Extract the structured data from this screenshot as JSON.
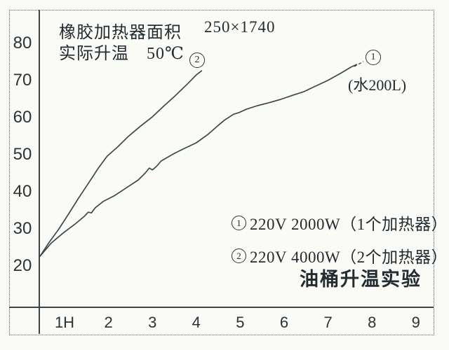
{
  "header": {
    "line1_label": "橡胶加热器面积",
    "line1_value": "250×1740",
    "line2": "实际升温　50℃"
  },
  "curve_labels": {
    "c1": {
      "num": "1",
      "note": "(水200L)"
    },
    "c2": {
      "num": "2"
    }
  },
  "legend": {
    "items": [
      {
        "num": "1",
        "label": "220V 2000W（1个加热器）"
      },
      {
        "num": "2",
        "label": "220V 4000W（2个加热器）"
      }
    ]
  },
  "title": "油桶升温实验",
  "chart_data": {
    "type": "line",
    "title": "油桶升温实验",
    "annotations": [
      "橡胶加热器面积 250×1740",
      "实际升温 50℃",
      "(水200L)"
    ],
    "x_unit": "hours",
    "x_ticks": [
      "1H",
      "2",
      "3",
      "4",
      "5",
      "6",
      "7",
      "8",
      "9"
    ],
    "y_ticks": [
      80,
      70,
      60,
      50,
      40,
      30,
      20
    ],
    "y_axis_label_range": [
      20,
      80
    ],
    "grid": false,
    "legend_position": "lower-right",
    "series": [
      {
        "name": "① 220V 2000W（1个加热器）",
        "note": "(水200L)",
        "points": [
          [
            0.44,
            22.6
          ],
          [
            0.7,
            26.2
          ],
          [
            0.97,
            28.9
          ],
          [
            1.24,
            31.3
          ],
          [
            1.45,
            33.4
          ],
          [
            1.54,
            34.5
          ],
          [
            1.61,
            34.3
          ],
          [
            1.7,
            35.7
          ],
          [
            1.88,
            37.4
          ],
          [
            2.13,
            38.9
          ],
          [
            2.41,
            41.1
          ],
          [
            2.68,
            43.2
          ],
          [
            2.84,
            45.1
          ],
          [
            2.93,
            46.4
          ],
          [
            3.0,
            45.9
          ],
          [
            3.09,
            46.8
          ],
          [
            3.2,
            48.3
          ],
          [
            3.48,
            50.2
          ],
          [
            3.73,
            51.7
          ],
          [
            4.0,
            53.2
          ],
          [
            4.27,
            55.5
          ],
          [
            4.48,
            57.7
          ],
          [
            4.64,
            59.3
          ],
          [
            4.85,
            60.9
          ],
          [
            4.96,
            61.3
          ],
          [
            5.15,
            62.3
          ],
          [
            5.39,
            63.2
          ],
          [
            5.65,
            64.0
          ],
          [
            5.92,
            64.9
          ],
          [
            6.19,
            66.0
          ],
          [
            6.45,
            67.0
          ],
          [
            6.72,
            68.5
          ],
          [
            6.99,
            70.0
          ],
          [
            7.31,
            72.1
          ],
          [
            7.52,
            73.6
          ],
          [
            7.65,
            74.3
          ]
        ]
      },
      {
        "name": "② 220V 4000W（2个加热器）",
        "points": [
          [
            0.44,
            22.6
          ],
          [
            0.65,
            26.4
          ],
          [
            0.86,
            29.8
          ],
          [
            1.08,
            33.8
          ],
          [
            1.32,
            38.3
          ],
          [
            1.56,
            42.6
          ],
          [
            1.77,
            46.4
          ],
          [
            1.97,
            49.6
          ],
          [
            2.21,
            52.1
          ],
          [
            2.45,
            54.9
          ],
          [
            2.73,
            57.7
          ],
          [
            3.0,
            60.2
          ],
          [
            3.25,
            63.0
          ],
          [
            3.52,
            65.9
          ],
          [
            3.8,
            69.1
          ],
          [
            4.0,
            71.5
          ],
          [
            4.12,
            72.6
          ]
        ]
      }
    ]
  }
}
